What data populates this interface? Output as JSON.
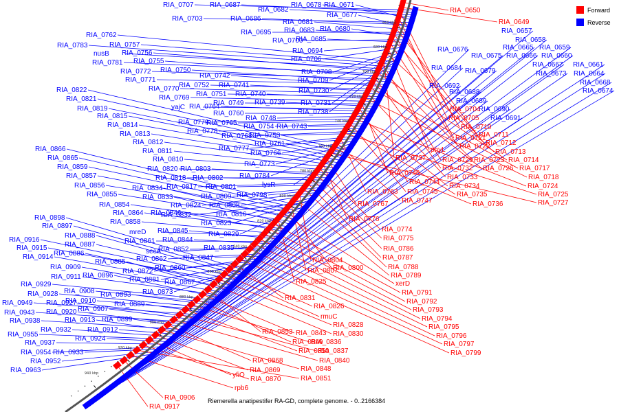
{
  "caption": "Riemerella anatipestifer RA-GD, complete genome. - 0..2166384",
  "legend": {
    "forward_label": "Forward",
    "reverse_label": "Reverse",
    "forward_color": "#ff0000",
    "reverse_color": "#0000ff"
  },
  "colors": {
    "forward": "#ff0000",
    "reverse": "#0000ff",
    "backbone": "#555555"
  },
  "ticks": [
    "660 kbp",
    "680 kbp",
    "700 kbp",
    "720 kbp",
    "740 kbp",
    "760 kbp",
    "780 kbp",
    "800 kbp",
    "820 kbp",
    "840 kbp",
    "860 kbp",
    "880 kbp",
    "900 kbp",
    "920 kbp",
    "940 kbp"
  ],
  "reverse_labels": [
    "RIA_0707",
    "RIA_0687",
    "RIA_0682",
    "RIA_0678",
    "RIA_0671",
    "RIA_0703",
    "RIA_0686",
    "RIA_0677",
    "RIA_0681",
    "RIA_0695",
    "RIA_0683",
    "RIA_0680",
    "RIA_0700",
    "RIA_0685",
    "RIA_0694",
    "RIA_0706",
    "RIA_0708",
    "RIA_0709",
    "RIA_0730",
    "RIA_0731",
    "RIA_0738",
    "RIA_0762",
    "RIA_0757",
    "RIA_0783",
    "nusB",
    "RIA_0756",
    "RIA_0781",
    "RIA_0755",
    "RIA_0772",
    "RIA_0750",
    "RIA_0771",
    "RIA_0742",
    "RIA_0752",
    "RIA_0741",
    "RIA_0770",
    "RIA_0751",
    "RIA_0740",
    "RIA_0769",
    "RIA_0749",
    "RIA_0739",
    "yajC",
    "RIA_0764",
    "RIA_0760",
    "RIA_0748",
    "RIA_0779",
    "RIA_0765",
    "RIA_0754",
    "RIA_0743",
    "RIA_0778",
    "RIA_0768",
    "RIA_0753",
    "RIA_0761",
    "RIA_0777",
    "RIA_0766",
    "RIA_0773",
    "RIA_0784",
    "lysR",
    "RIA_0822",
    "RIA_0821",
    "RIA_0819",
    "RIA_0815",
    "RIA_0814",
    "RIA_0813",
    "RIA_0812",
    "RIA_0811",
    "RIA_0810",
    "RIA_0820",
    "RIA_0803",
    "RIA_0818",
    "RIA_0802",
    "RIA_0817",
    "RIA_0801",
    "RIA_0809",
    "RIA_0798",
    "RIA_0824",
    "RIA_0808",
    "RIA_0816",
    "RIA_0823",
    "RIA_0832",
    "RIA_0829",
    "RIA_0866",
    "RIA_0865",
    "RIA_0859",
    "RIA_0857",
    "RIA_0856",
    "RIA_0834",
    "RIA_0855",
    "RIA_0833",
    "RIA_0854",
    "RIA_0864",
    "RIA_0846",
    "RIA_0858",
    "mreD",
    "RIA_0845",
    "RIA_0861",
    "RIA_0844",
    "secA",
    "RIA_0852",
    "RIA_0835",
    "RIA_0862",
    "RIA_0847",
    "RIA_0860",
    "RIA_0872",
    "RIA_0881",
    "RIA_0867",
    "RIA_0873",
    "RIA_0898",
    "RIA_0897",
    "RIA_0888",
    "RIA_0887",
    "RIA_0916",
    "RIA_0915",
    "RIA_0886",
    "RIA_0914",
    "RIA_0885",
    "RIA_0909",
    "RIA_0911",
    "RIA_0896",
    "RIA_0929",
    "RIA_0908",
    "RIA_0893",
    "RIA_0928",
    "RIA_0910",
    "RIA_0889",
    "RIA_0949",
    "RIA_0927",
    "RIA_0907",
    "RIA_0943",
    "RIA_0920",
    "RIA_0899",
    "RIA_0938",
    "RIA_0913",
    "RIA_0912",
    "RIA_0932",
    "RIA_0955",
    "RIA_0924",
    "RIA_0937",
    "RIA_0954",
    "RIA_0933",
    "RIA_0952",
    "RIA_0963",
    "RIA_0676",
    "RIA_0684",
    "RIA_0692",
    "RIA_0657",
    "RIA_0658",
    "RIA_0665",
    "RIA_0659",
    "RIA_0675",
    "RIA_0666",
    "RIA_0660",
    "RIA_0667",
    "RIA_0661",
    "RIA_0679",
    "RIA_0673",
    "RIA_0664",
    "RIA_0668",
    "RIA_0674",
    "RIA_0688",
    "RIA_0689",
    "RIA_0690",
    "RIA_0691"
  ],
  "forward_labels": [
    "RIA_0650",
    "RIA_0649",
    "RIA_0704",
    "RIA_0705",
    "RIA_0710",
    "RIA_0711",
    "RIA_0721",
    "RIA_0712",
    "RIA_0722",
    "phyL",
    "RIA_0713",
    "RIA_0737",
    "RIA_0729",
    "RIA_0723",
    "RIA_0714",
    "RIA_0732",
    "RIA_0726",
    "RIA_0717",
    "RIA_0733",
    "RIA_0718",
    "RIA_0746",
    "RIA_0744",
    "RIA_0734",
    "RIA_0724",
    "RIA_0745",
    "RIA_0735",
    "RIA_0725",
    "RIA_0763",
    "RIA_0747",
    "RIA_0736",
    "RIA_0727",
    "RIA_0767",
    "RIA_0776",
    "RIA_0774",
    "RIA_0775",
    "RIA_0786",
    "RIA_0787",
    "RIA_0788",
    "RIA_0804",
    "RIA_0789",
    "RIA_0807",
    "RIA_0800",
    "xerD",
    "RIA_0825",
    "RIA_0791",
    "RIA_0792",
    "RIA_0793",
    "RIA_0794",
    "RIA_0795",
    "RIA_0796",
    "RIA_0797",
    "RIA_0799",
    "RIA_0831",
    "RIA_0826",
    "rmuC",
    "RIA_0828",
    "RIA_0830",
    "RIA_0853",
    "RIA_0843",
    "RIA_0849",
    "RIA_0836",
    "RIA_0850",
    "RIA_0837",
    "RIA_0840",
    "RIA_0868",
    "RIA_0848",
    "RIA_0869",
    "yfiO",
    "RIA_0870",
    "RIA_0851",
    "rpb6",
    "RIA_0906",
    "RIA_0917"
  ]
}
